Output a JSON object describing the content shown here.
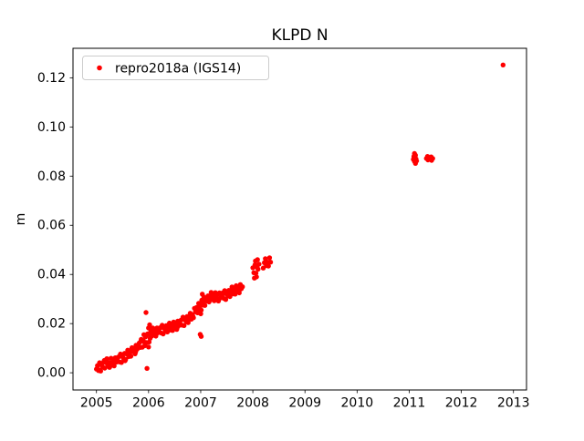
{
  "figure": {
    "title": "KLPD N",
    "ylabel": "m",
    "legend_label": "repro2018a (IGS14)",
    "marker_color": "#ff0000",
    "axis_color": "#000000",
    "legend_border_color": "#cccccc",
    "background_color": "#ffffff"
  },
  "chart_data": {
    "type": "scatter",
    "title": "KLPD N",
    "xlabel": "",
    "ylabel": "m",
    "grid": false,
    "legend_position": "upper left",
    "xlim": [
      2004.55,
      2013.25
    ],
    "ylim": [
      -0.007,
      0.132
    ],
    "xticks": [
      2005,
      2006,
      2007,
      2008,
      2009,
      2010,
      2011,
      2012,
      2013
    ],
    "yticks": [
      0.0,
      0.02,
      0.04,
      0.06,
      0.08,
      0.1,
      0.12
    ],
    "series": [
      {
        "name": "repro2018a (IGS14)",
        "color": "#ff0000",
        "marker": "circle",
        "points": [
          [
            2005.0,
            0.0015
          ],
          [
            2005.02,
            0.0029
          ],
          [
            2005.04,
            0.0009
          ],
          [
            2005.06,
            0.0041
          ],
          [
            2005.08,
            0.0007
          ],
          [
            2005.1,
            0.0031
          ],
          [
            2005.12,
            0.0023
          ],
          [
            2005.14,
            0.0044
          ],
          [
            2005.16,
            0.0019
          ],
          [
            2005.18,
            0.0041
          ],
          [
            2005.2,
            0.0057
          ],
          [
            2005.22,
            0.0029
          ],
          [
            2005.24,
            0.0042
          ],
          [
            2005.26,
            0.0026
          ],
          [
            2005.28,
            0.0059
          ],
          [
            2005.3,
            0.0041
          ],
          [
            2005.32,
            0.0054
          ],
          [
            2005.34,
            0.0028
          ],
          [
            2005.36,
            0.0061
          ],
          [
            2005.38,
            0.0043
          ],
          [
            2005.4,
            0.005
          ],
          [
            2005.42,
            0.0064
          ],
          [
            2005.44,
            0.0044
          ],
          [
            2005.46,
            0.0076
          ],
          [
            2005.48,
            0.0042
          ],
          [
            2005.5,
            0.0066
          ],
          [
            2005.52,
            0.0058
          ],
          [
            2005.54,
            0.0079
          ],
          [
            2005.56,
            0.0054
          ],
          [
            2005.58,
            0.0076
          ],
          [
            2005.6,
            0.0092
          ],
          [
            2005.62,
            0.0066
          ],
          [
            2005.64,
            0.0081
          ],
          [
            2005.66,
            0.0067
          ],
          [
            2005.68,
            0.0102
          ],
          [
            2005.7,
            0.0086
          ],
          [
            2005.72,
            0.0101
          ],
          [
            2005.74,
            0.0077
          ],
          [
            2005.76,
            0.0112
          ],
          [
            2005.78,
            0.0096
          ],
          [
            2005.8,
            0.0105
          ],
          [
            2005.82,
            0.0121
          ],
          [
            2005.84,
            0.0103
          ],
          [
            2005.86,
            0.0136
          ],
          [
            2005.88,
            0.0104
          ],
          [
            2005.9,
            0.013
          ],
          [
            2005.92,
            0.0124
          ],
          [
            2005.94,
            0.0146
          ],
          [
            2005.96,
            0.0123
          ],
          [
            2005.98,
            0.0158
          ],
          [
            2006.0,
            0.0182
          ],
          [
            2006.02,
            0.0153
          ],
          [
            2006.04,
            0.0166
          ],
          [
            2006.06,
            0.0149
          ],
          [
            2006.08,
            0.0182
          ],
          [
            2006.1,
            0.0163
          ],
          [
            2006.12,
            0.0176
          ],
          [
            2006.14,
            0.0149
          ],
          [
            2006.16,
            0.0182
          ],
          [
            2006.18,
            0.0163
          ],
          [
            2006.2,
            0.017
          ],
          [
            2006.22,
            0.0183
          ],
          [
            2006.24,
            0.0162
          ],
          [
            2006.26,
            0.0193
          ],
          [
            2006.28,
            0.0158
          ],
          [
            2006.3,
            0.0181
          ],
          [
            2006.32,
            0.0172
          ],
          [
            2006.34,
            0.0192
          ],
          [
            2006.36,
            0.0166
          ],
          [
            2006.38,
            0.0187
          ],
          [
            2006.4,
            0.0202
          ],
          [
            2006.42,
            0.0174
          ],
          [
            2006.44,
            0.0188
          ],
          [
            2006.46,
            0.0172
          ],
          [
            2006.48,
            0.0206
          ],
          [
            2006.5,
            0.0188
          ],
          [
            2006.52,
            0.0202
          ],
          [
            2006.54,
            0.0176
          ],
          [
            2006.56,
            0.021
          ],
          [
            2006.58,
            0.0192
          ],
          [
            2006.6,
            0.02
          ],
          [
            2006.62,
            0.0214
          ],
          [
            2006.64,
            0.0194
          ],
          [
            2006.66,
            0.0226
          ],
          [
            2006.68,
            0.0192
          ],
          [
            2006.7,
            0.0216
          ],
          [
            2006.72,
            0.0208
          ],
          [
            2006.74,
            0.0229
          ],
          [
            2006.76,
            0.0204
          ],
          [
            2006.78,
            0.0226
          ],
          [
            2006.8,
            0.0242
          ],
          [
            2006.82,
            0.0218
          ],
          [
            2006.84,
            0.0236
          ],
          [
            2006.86,
            0.0224
          ],
          [
            2006.88,
            0.0262
          ],
          [
            2006.9,
            0.0248
          ],
          [
            2006.92,
            0.0266
          ],
          [
            2006.94,
            0.0244
          ],
          [
            2006.96,
            0.0282
          ],
          [
            2006.98,
            0.0268
          ],
          [
            2007.0,
            0.028
          ],
          [
            2007.02,
            0.0295
          ],
          [
            2007.04,
            0.0275
          ],
          [
            2007.06,
            0.0308
          ],
          [
            2007.08,
            0.0274
          ],
          [
            2007.1,
            0.0299
          ],
          [
            2007.12,
            0.0291
          ],
          [
            2007.14,
            0.0313
          ],
          [
            2007.16,
            0.0288
          ],
          [
            2007.18,
            0.0311
          ],
          [
            2007.2,
            0.0327
          ],
          [
            2007.22,
            0.0298
          ],
          [
            2007.24,
            0.0311
          ],
          [
            2007.26,
            0.0293
          ],
          [
            2007.28,
            0.0326
          ],
          [
            2007.3,
            0.0307
          ],
          [
            2007.32,
            0.0319
          ],
          [
            2007.34,
            0.0292
          ],
          [
            2007.36,
            0.0325
          ],
          [
            2007.38,
            0.0305
          ],
          [
            2007.4,
            0.0312
          ],
          [
            2007.42,
            0.0325
          ],
          [
            2007.44,
            0.0303
          ],
          [
            2007.46,
            0.0334
          ],
          [
            2007.48,
            0.0298
          ],
          [
            2007.5,
            0.0321
          ],
          [
            2007.52,
            0.0313
          ],
          [
            2007.54,
            0.0335
          ],
          [
            2007.56,
            0.031
          ],
          [
            2007.58,
            0.0332
          ],
          [
            2007.6,
            0.0349
          ],
          [
            2007.62,
            0.0321
          ],
          [
            2007.64,
            0.0335
          ],
          [
            2007.66,
            0.032
          ],
          [
            2007.68,
            0.0354
          ],
          [
            2007.7,
            0.0336
          ],
          [
            2007.72,
            0.0351
          ],
          [
            2007.74,
            0.0325
          ],
          [
            2007.76,
            0.0359
          ],
          [
            2007.78,
            0.0342
          ],
          [
            2007.8,
            0.035
          ],
          [
            2008.0,
            0.0427
          ],
          [
            2008.02,
            0.0407
          ],
          [
            2008.04,
            0.0439
          ],
          [
            2008.06,
            0.0405
          ],
          [
            2008.08,
            0.0429
          ],
          [
            2008.1,
            0.0421
          ],
          [
            2008.12,
            0.0442
          ],
          [
            2008.2,
            0.0426
          ],
          [
            2008.22,
            0.0448
          ],
          [
            2008.24,
            0.0464
          ],
          [
            2008.26,
            0.0436
          ],
          [
            2008.28,
            0.045
          ],
          [
            2008.3,
            0.0434
          ],
          [
            2008.32,
            0.0468
          ],
          [
            2008.34,
            0.045
          ],
          [
            2005.05,
            0.0012
          ],
          [
            2005.15,
            0.005
          ],
          [
            2005.25,
            0.0022
          ],
          [
            2005.45,
            0.0068
          ],
          [
            2005.55,
            0.0049
          ],
          [
            2005.65,
            0.009
          ],
          [
            2005.75,
            0.0085
          ],
          [
            2005.85,
            0.0128
          ],
          [
            2005.91,
            0.0155
          ],
          [
            2005.93,
            0.011
          ],
          [
            2005.95,
            0.0245
          ],
          [
            2005.97,
            0.0018
          ],
          [
            2006.0,
            0.0105
          ],
          [
            2006.01,
            0.0125
          ],
          [
            2006.02,
            0.0195
          ],
          [
            2006.03,
            0.014
          ],
          [
            2006.05,
            0.0172
          ],
          [
            2006.15,
            0.0158
          ],
          [
            2006.25,
            0.0185
          ],
          [
            2006.35,
            0.017
          ],
          [
            2006.45,
            0.0196
          ],
          [
            2006.55,
            0.0185
          ],
          [
            2006.65,
            0.0218
          ],
          [
            2006.75,
            0.0212
          ],
          [
            2006.85,
            0.023
          ],
          [
            2006.95,
            0.0258
          ],
          [
            2006.99,
            0.0156
          ],
          [
            2007.0,
            0.024
          ],
          [
            2007.01,
            0.0148
          ],
          [
            2007.01,
            0.0255
          ],
          [
            2007.03,
            0.032
          ],
          [
            2007.05,
            0.029
          ],
          [
            2007.15,
            0.0302
          ],
          [
            2007.25,
            0.0318
          ],
          [
            2007.35,
            0.03
          ],
          [
            2007.45,
            0.0322
          ],
          [
            2007.55,
            0.0326
          ],
          [
            2007.65,
            0.0342
          ],
          [
            2007.75,
            0.0338
          ],
          [
            2008.03,
            0.0385
          ],
          [
            2008.05,
            0.0455
          ],
          [
            2008.07,
            0.039
          ],
          [
            2008.09,
            0.046
          ],
          [
            2011.08,
            0.0868
          ],
          [
            2011.09,
            0.088
          ],
          [
            2011.1,
            0.0892
          ],
          [
            2011.1,
            0.086
          ],
          [
            2011.11,
            0.0875
          ],
          [
            2011.12,
            0.0885
          ],
          [
            2011.12,
            0.0852
          ],
          [
            2011.13,
            0.087
          ],
          [
            2011.14,
            0.0862
          ],
          [
            2011.33,
            0.0872
          ],
          [
            2011.35,
            0.088
          ],
          [
            2011.36,
            0.0866
          ],
          [
            2011.38,
            0.0875
          ],
          [
            2011.4,
            0.087
          ],
          [
            2011.42,
            0.0878
          ],
          [
            2011.43,
            0.0864
          ],
          [
            2011.45,
            0.0872
          ],
          [
            2012.8,
            0.1252
          ]
        ]
      }
    ]
  }
}
